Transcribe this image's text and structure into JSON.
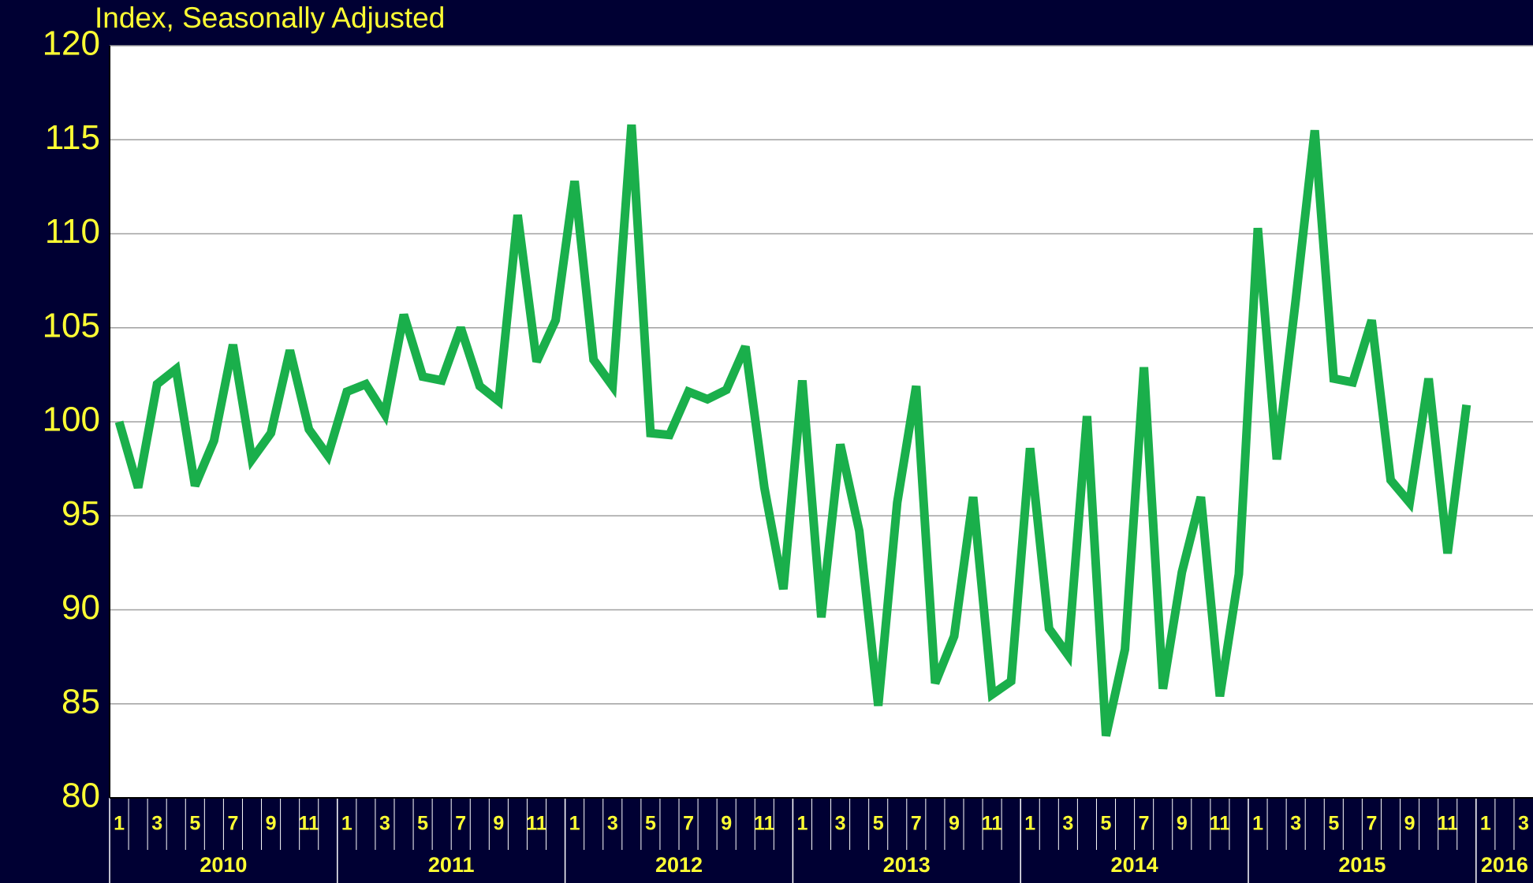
{
  "chart_data": {
    "type": "line",
    "title": "Index, Seasonally Adjusted",
    "categories": [
      "1",
      null,
      "3",
      null,
      "5",
      null,
      "7",
      null,
      "9",
      null,
      "11",
      null,
      "1",
      null,
      "3",
      null,
      "5",
      null,
      "7",
      null,
      "9",
      null,
      "11",
      null,
      "1",
      null,
      "3",
      null,
      "5",
      null,
      "7",
      null,
      "9",
      null,
      "11",
      null,
      "1",
      null,
      "3",
      null,
      "5",
      null,
      "7",
      null,
      "9",
      null,
      "11",
      null,
      "1",
      null,
      "3",
      null,
      "5",
      null,
      "7",
      null,
      "9",
      null,
      "11",
      null,
      "1",
      null,
      "3",
      null,
      "5",
      null,
      "7",
      null,
      "9",
      null,
      "11",
      null,
      "1",
      null,
      "3"
    ],
    "years": [
      "2010",
      "2011",
      "2012",
      "2013",
      "2014",
      "2015",
      "2016"
    ],
    "series": [
      {
        "name": "Index",
        "color": "#1aaf4b",
        "values": [
          100,
          96.5,
          102,
          102.8,
          96.6,
          99,
          104.1,
          98,
          99.4,
          103.8,
          99.6,
          98.2,
          101.6,
          102,
          100.4,
          105.7,
          102.4,
          102.2,
          105,
          101.9,
          101.1,
          111,
          103.2,
          105.4,
          112.8,
          103.3,
          101.9,
          115.8,
          99.4,
          99.3,
          101.6,
          101.2,
          101.7,
          104,
          96.5,
          91.1,
          102.2,
          89.6,
          98.8,
          94.2,
          84.9,
          95.7,
          101.9,
          86.1,
          88.6,
          96,
          85.5,
          86.2,
          98.6,
          89,
          87.6,
          100.3,
          83.3,
          87.9,
          102.9,
          85.8,
          92,
          96,
          85.4,
          91.9,
          110.3,
          98,
          106.5,
          115.5,
          102.3,
          102.1,
          105.4,
          96.9,
          95.7,
          102.3,
          93,
          100.9,
          null,
          null,
          null
        ]
      }
    ],
    "ylim": [
      80,
      120
    ],
    "yticks": [
      80,
      85,
      90,
      95,
      100,
      105,
      110,
      115,
      120
    ],
    "grid": true
  }
}
